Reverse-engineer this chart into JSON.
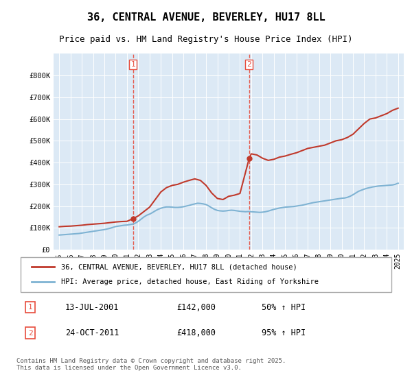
{
  "title1": "36, CENTRAL AVENUE, BEVERLEY, HU17 8LL",
  "title2": "Price paid vs. HM Land Registry's House Price Index (HPI)",
  "legend_line1": "36, CENTRAL AVENUE, BEVERLEY, HU17 8LL (detached house)",
  "legend_line2": "HPI: Average price, detached house, East Riding of Yorkshire",
  "annotation1_label": "1",
  "annotation1_date": "13-JUL-2001",
  "annotation1_price": "£142,000",
  "annotation1_hpi": "50% ↑ HPI",
  "annotation2_label": "2",
  "annotation2_date": "24-OCT-2011",
  "annotation2_price": "£418,000",
  "annotation2_hpi": "95% ↑ HPI",
  "footer": "Contains HM Land Registry data © Crown copyright and database right 2025.\nThis data is licensed under the Open Government Licence v3.0.",
  "red_color": "#c0392b",
  "blue_color": "#7fb3d3",
  "vline_color": "#e74c3c",
  "background_color": "#dce9f5",
  "plot_bg": "#dce9f5",
  "ylim": [
    0,
    900000
  ],
  "yticks": [
    0,
    100000,
    200000,
    300000,
    400000,
    500000,
    600000,
    700000,
    800000
  ],
  "ytick_labels": [
    "£0",
    "£100K",
    "£200K",
    "£300K",
    "£400K",
    "£500K",
    "£600K",
    "£700K",
    "£800K"
  ],
  "vline1_x": 2001.53,
  "vline2_x": 2011.81,
  "sale1_x": 2001.53,
  "sale1_y": 142000,
  "sale2_x": 2011.81,
  "sale2_y": 418000,
  "hpi_years": [
    1995.0,
    1995.25,
    1995.5,
    1995.75,
    1996.0,
    1996.25,
    1996.5,
    1996.75,
    1997.0,
    1997.25,
    1997.5,
    1997.75,
    1998.0,
    1998.25,
    1998.5,
    1998.75,
    1999.0,
    1999.25,
    1999.5,
    1999.75,
    2000.0,
    2000.25,
    2000.5,
    2000.75,
    2001.0,
    2001.25,
    2001.5,
    2001.75,
    2002.0,
    2002.25,
    2002.5,
    2002.75,
    2003.0,
    2003.25,
    2003.5,
    2003.75,
    2004.0,
    2004.25,
    2004.5,
    2004.75,
    2005.0,
    2005.25,
    2005.5,
    2005.75,
    2006.0,
    2006.25,
    2006.5,
    2006.75,
    2007.0,
    2007.25,
    2007.5,
    2007.75,
    2008.0,
    2008.25,
    2008.5,
    2008.75,
    2009.0,
    2009.25,
    2009.5,
    2009.75,
    2010.0,
    2010.25,
    2010.5,
    2010.75,
    2011.0,
    2011.25,
    2011.5,
    2011.75,
    2012.0,
    2012.25,
    2012.5,
    2012.75,
    2013.0,
    2013.25,
    2013.5,
    2013.75,
    2014.0,
    2014.25,
    2014.5,
    2014.75,
    2015.0,
    2015.25,
    2015.5,
    2015.75,
    2016.0,
    2016.25,
    2016.5,
    2016.75,
    2017.0,
    2017.25,
    2017.5,
    2017.75,
    2018.0,
    2018.25,
    2018.5,
    2018.75,
    2019.0,
    2019.25,
    2019.5,
    2019.75,
    2020.0,
    2020.25,
    2020.5,
    2020.75,
    2021.0,
    2021.25,
    2021.5,
    2021.75,
    2022.0,
    2022.25,
    2022.5,
    2022.75,
    2023.0,
    2023.25,
    2023.5,
    2023.75,
    2024.0,
    2024.25,
    2024.5,
    2024.75,
    2025.0
  ],
  "hpi_values": [
    67000,
    68000,
    69000,
    70000,
    71000,
    72000,
    73000,
    74000,
    76000,
    78000,
    80000,
    82000,
    84000,
    86000,
    88000,
    90000,
    92000,
    95000,
    98000,
    102000,
    106000,
    108000,
    110000,
    112000,
    113000,
    115000,
    117000,
    122000,
    130000,
    140000,
    150000,
    158000,
    163000,
    170000,
    178000,
    185000,
    190000,
    194000,
    196000,
    196000,
    195000,
    194000,
    194000,
    195000,
    197000,
    200000,
    203000,
    207000,
    210000,
    213000,
    212000,
    210000,
    207000,
    200000,
    192000,
    185000,
    180000,
    178000,
    177000,
    178000,
    180000,
    181000,
    180000,
    178000,
    176000,
    175000,
    174000,
    175000,
    174000,
    173000,
    172000,
    171000,
    172000,
    174000,
    177000,
    181000,
    185000,
    188000,
    191000,
    193000,
    195000,
    196000,
    197000,
    198000,
    200000,
    202000,
    204000,
    207000,
    210000,
    213000,
    216000,
    218000,
    220000,
    222000,
    224000,
    226000,
    228000,
    230000,
    232000,
    234000,
    236000,
    237000,
    240000,
    245000,
    252000,
    260000,
    268000,
    273000,
    278000,
    282000,
    285000,
    288000,
    290000,
    292000,
    293000,
    294000,
    295000,
    296000,
    297000,
    300000,
    305000
  ],
  "red_years": [
    1995.0,
    1995.5,
    1996.0,
    1996.5,
    1997.0,
    1997.5,
    1998.0,
    1998.5,
    1999.0,
    1999.5,
    2000.0,
    2000.5,
    2001.0,
    2001.53,
    2001.75,
    2002.0,
    2002.5,
    2003.0,
    2003.5,
    2004.0,
    2004.5,
    2005.0,
    2005.5,
    2006.0,
    2006.5,
    2007.0,
    2007.5,
    2008.0,
    2008.5,
    2009.0,
    2009.5,
    2010.0,
    2010.5,
    2011.0,
    2011.81,
    2012.0,
    2012.5,
    2013.0,
    2013.5,
    2014.0,
    2014.5,
    2015.0,
    2015.5,
    2016.0,
    2016.5,
    2017.0,
    2017.5,
    2018.0,
    2018.5,
    2019.0,
    2019.5,
    2020.0,
    2020.5,
    2021.0,
    2021.5,
    2022.0,
    2022.5,
    2023.0,
    2023.5,
    2024.0,
    2024.5,
    2025.0
  ],
  "red_values": [
    105000,
    107000,
    108000,
    110000,
    112000,
    115000,
    117000,
    119000,
    121000,
    124000,
    127000,
    129000,
    130000,
    142000,
    148000,
    155000,
    175000,
    195000,
    230000,
    265000,
    285000,
    295000,
    300000,
    310000,
    318000,
    325000,
    318000,
    295000,
    260000,
    235000,
    230000,
    245000,
    250000,
    258000,
    418000,
    440000,
    435000,
    420000,
    410000,
    415000,
    425000,
    430000,
    438000,
    445000,
    455000,
    465000,
    470000,
    475000,
    480000,
    490000,
    500000,
    505000,
    515000,
    530000,
    555000,
    580000,
    600000,
    605000,
    615000,
    625000,
    640000,
    650000
  ],
  "xtick_years": [
    1995,
    1996,
    1997,
    1998,
    1999,
    2000,
    2001,
    2002,
    2003,
    2004,
    2005,
    2006,
    2007,
    2008,
    2009,
    2010,
    2011,
    2012,
    2013,
    2014,
    2015,
    2016,
    2017,
    2018,
    2019,
    2020,
    2021,
    2022,
    2023,
    2024,
    2025
  ]
}
